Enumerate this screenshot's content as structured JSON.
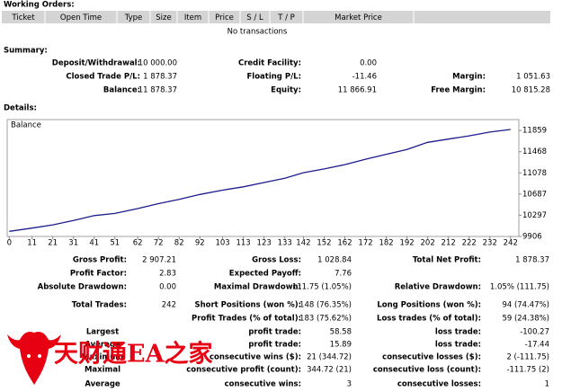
{
  "orders": {
    "title": "Working Orders:",
    "columns": [
      "Ticket",
      "Open Time",
      "Type",
      "Size",
      "Item",
      "Price",
      "S / L",
      "T / P",
      "Market Price"
    ],
    "empty": "No transactions"
  },
  "summary": {
    "title": "Summary:",
    "rows": [
      [
        {
          "label": "Deposit/Withdrawal:",
          "value": "10 000.00"
        },
        {
          "label": "Credit Facility:",
          "value": "0.00"
        }
      ],
      [
        {
          "label": "Closed Trade P/L:",
          "value": "1 878.37"
        },
        {
          "label": "Floating P/L:",
          "value": "-11.46"
        },
        {
          "label": "Margin:",
          "value": "1 051.63"
        }
      ],
      [
        {
          "label": "Balance:",
          "value": "11 878.37"
        },
        {
          "label": "Equity:",
          "value": "11 866.91"
        },
        {
          "label": "Free Margin:",
          "value": "10 815.28"
        }
      ]
    ]
  },
  "details": {
    "title": "Details:",
    "rows": [
      [
        {
          "label": "Gross Profit:",
          "value": "2 907.21"
        },
        {
          "label": "Gross Loss:",
          "value": "1 028.84"
        },
        {
          "label": "Total Net Profit:",
          "value": "1 878.37"
        }
      ],
      [
        {
          "label": "Profit Factor:",
          "value": "2.83"
        },
        {
          "label": "Expected Payoff:",
          "value": "7.76"
        }
      ],
      [
        {
          "label": "Absolute Drawdown:",
          "value": "0.00"
        },
        {
          "label": "Maximal Drawdown:",
          "value": "111.75 (1.05%)"
        },
        {
          "label": "Relative Drawdown:",
          "value": "1.05% (111.75)"
        }
      ],
      [
        {
          "label": "Total Trades:",
          "value": "242"
        },
        {
          "label": "Short Positions (won %):",
          "value": "148 (76.35%)"
        },
        {
          "label": "Long Positions (won %):",
          "value": "94 (74.47%)"
        }
      ],
      [
        null,
        {
          "label": "Profit Trades (% of total):",
          "value": "183 (75.62%)"
        },
        {
          "label": "Loss trades (% of total):",
          "value": "59 (24.38%)"
        }
      ],
      [
        {
          "label": "Largest"
        },
        {
          "label": "profit trade:",
          "value": "58.58"
        },
        {
          "label": "loss trade:",
          "value": "-100.27"
        }
      ],
      [
        {
          "label": "Average"
        },
        {
          "label": "profit trade:",
          "value": "15.89"
        },
        {
          "label": "loss trade:",
          "value": "-17.44"
        }
      ],
      [
        {
          "label": "Maximum"
        },
        {
          "label": "consecutive wins ($):",
          "value": "21 (344.72)"
        },
        {
          "label": "consecutive losses ($):",
          "value": "2 (-111.75)"
        }
      ],
      [
        {
          "label": "Maximal"
        },
        {
          "label": "consecutive profit (count):",
          "value": "344.72 (21)"
        },
        {
          "label": "consecutive loss (count):",
          "value": "-111.75 (2)"
        }
      ],
      [
        {
          "label": "Average"
        },
        {
          "label": "consecutive wins:",
          "value": "3"
        },
        {
          "label": "consecutive losses:",
          "value": "1"
        }
      ]
    ]
  },
  "watermark": "天财通EA之家",
  "chart_data": {
    "type": "line",
    "x": [
      0,
      11,
      21,
      31,
      41,
      51,
      62,
      72,
      82,
      92,
      103,
      113,
      123,
      133,
      142,
      152,
      162,
      172,
      182,
      192,
      202,
      212,
      222,
      232,
      242
    ],
    "series": [
      {
        "name": "Balance",
        "color": "#1c1c8c",
        "values": [
          10000,
          10060,
          10120,
          10200,
          10290,
          10330,
          10420,
          10510,
          10590,
          10680,
          10760,
          10820,
          10900,
          10980,
          11080,
          11150,
          11230,
          11330,
          11420,
          11510,
          11640,
          11700,
          11760,
          11830,
          11878.37
        ]
      }
    ],
    "xlim": [
      -1,
      246
    ],
    "ylim": [
      9906,
      12060
    ],
    "xticks": [
      0,
      11,
      21,
      31,
      41,
      51,
      62,
      72,
      82,
      92,
      103,
      113,
      123,
      133,
      142,
      152,
      162,
      172,
      182,
      192,
      202,
      212,
      222,
      232,
      242
    ],
    "yticks": [
      9906,
      10297,
      10687,
      11078,
      11468,
      11859
    ]
  }
}
